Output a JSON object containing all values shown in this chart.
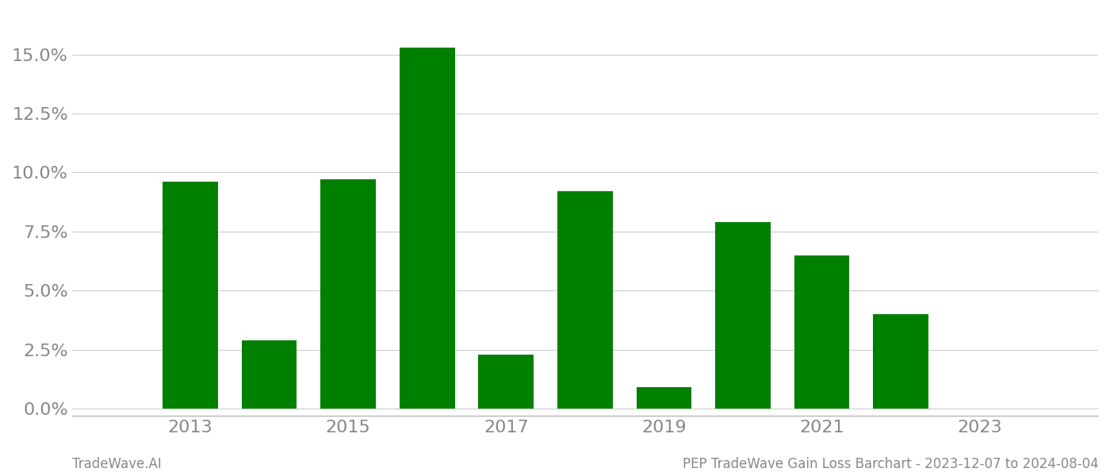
{
  "years": [
    2013,
    2014,
    2015,
    2016,
    2017,
    2018,
    2019,
    2020,
    2021,
    2022,
    2023
  ],
  "values": [
    0.096,
    0.029,
    0.097,
    0.153,
    0.023,
    0.092,
    0.009,
    0.079,
    0.065,
    0.04,
    0.0
  ],
  "bar_color": "#008000",
  "background_color": "#ffffff",
  "grid_color": "#cccccc",
  "axis_label_color": "#888888",
  "ylabel_ticks": [
    0.0,
    0.025,
    0.05,
    0.075,
    0.1,
    0.125,
    0.15
  ],
  "xlabel_ticks": [
    2013,
    2015,
    2017,
    2019,
    2021,
    2023
  ],
  "ylim": [
    -0.003,
    0.168
  ],
  "xlim": [
    2011.5,
    2024.5
  ],
  "footer_left": "TradeWave.AI",
  "footer_right": "PEP TradeWave Gain Loss Barchart - 2023-12-07 to 2024-08-04",
  "footer_color": "#888888",
  "footer_fontsize": 12,
  "tick_fontsize": 16,
  "bar_width": 0.7
}
